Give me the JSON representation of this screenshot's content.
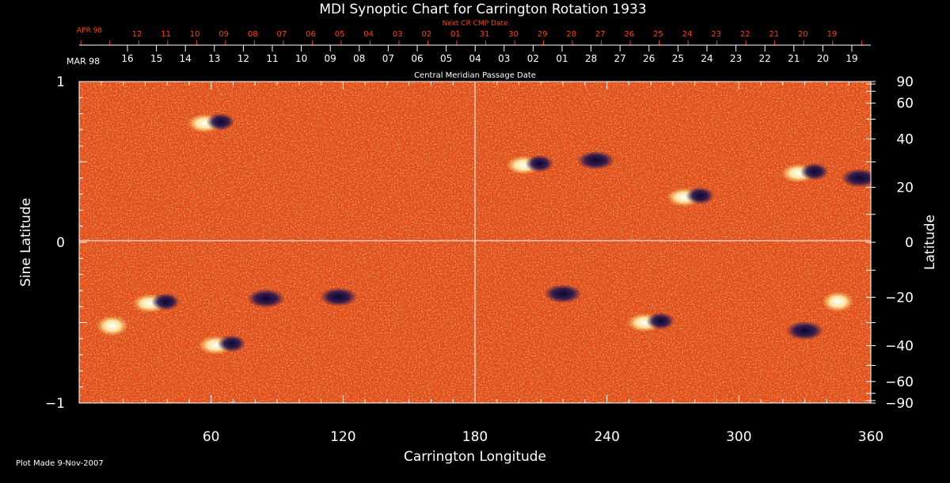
{
  "chart_data": {
    "type": "heatmap",
    "title": "MDI Synoptic Chart for Carrington Rotation 1933",
    "xlabel": "Carrington Longitude",
    "ylabel_left": "Sine Latitude",
    "ylabel_right": "Latitude",
    "xlim": [
      0,
      360
    ],
    "ylim": [
      -1,
      1
    ],
    "x_ticks": [
      60,
      120,
      180,
      240,
      300,
      360
    ],
    "y_ticks_left": [
      {
        "value": 1,
        "label": "1"
      },
      {
        "value": 0,
        "label": "0"
      },
      {
        "value": -1,
        "label": "−1"
      }
    ],
    "y_ticks_right": [
      90,
      60,
      40,
      20,
      0,
      -20,
      -40,
      -60,
      -90
    ],
    "top_axis_label": "Central Meridian Passage Date",
    "top_axis_month": "MAR 98",
    "top_axis_dates": [
      "16",
      "15",
      "14",
      "13",
      "12",
      "11",
      "10",
      "09",
      "08",
      "07",
      "06",
      "05",
      "04",
      "03",
      "02",
      "01",
      "28",
      "27",
      "26",
      "25",
      "24",
      "23",
      "22",
      "21",
      "20",
      "19"
    ],
    "next_cr_label": "Next CR CMP Date",
    "next_cr_month": "APR 98",
    "next_cr_dates": [
      "12",
      "11",
      "10",
      "09",
      "08",
      "07",
      "06",
      "05",
      "04",
      "03",
      "02",
      "01",
      "31",
      "30",
      "29",
      "28",
      "27",
      "26",
      "25",
      "24",
      "23",
      "22",
      "21",
      "20",
      "19"
    ],
    "gridlines": {
      "x": [
        180
      ],
      "y": [
        0
      ]
    },
    "active_regions": [
      {
        "lon": 35,
        "sinlat": -0.38,
        "polarity": "bipolar"
      },
      {
        "lon": 15,
        "sinlat": -0.52,
        "polarity": "positive"
      },
      {
        "lon": 65,
        "sinlat": -0.64,
        "polarity": "bipolar"
      },
      {
        "lon": 85,
        "sinlat": -0.35,
        "polarity": "negative"
      },
      {
        "lon": 118,
        "sinlat": -0.34,
        "polarity": "negative"
      },
      {
        "lon": 60,
        "sinlat": 0.74,
        "polarity": "bipolar"
      },
      {
        "lon": 205,
        "sinlat": 0.48,
        "polarity": "bipolar"
      },
      {
        "lon": 235,
        "sinlat": 0.51,
        "polarity": "negative"
      },
      {
        "lon": 278,
        "sinlat": 0.28,
        "polarity": "bipolar"
      },
      {
        "lon": 330,
        "sinlat": 0.43,
        "polarity": "bipolar"
      },
      {
        "lon": 355,
        "sinlat": 0.4,
        "polarity": "negative"
      },
      {
        "lon": 220,
        "sinlat": -0.32,
        "polarity": "negative"
      },
      {
        "lon": 260,
        "sinlat": -0.5,
        "polarity": "bipolar"
      },
      {
        "lon": 330,
        "sinlat": -0.55,
        "polarity": "negative"
      },
      {
        "lon": 345,
        "sinlat": -0.37,
        "polarity": "positive"
      }
    ]
  },
  "footer": {
    "plot_made": "Plot Made  9-Nov-2007"
  },
  "colors": {
    "background": "#000000",
    "field_base": "#e8541a",
    "positive": "#ffffe0",
    "negative": "#1a1040",
    "axis": "#ffffff",
    "accent_red": "#ff4010"
  }
}
